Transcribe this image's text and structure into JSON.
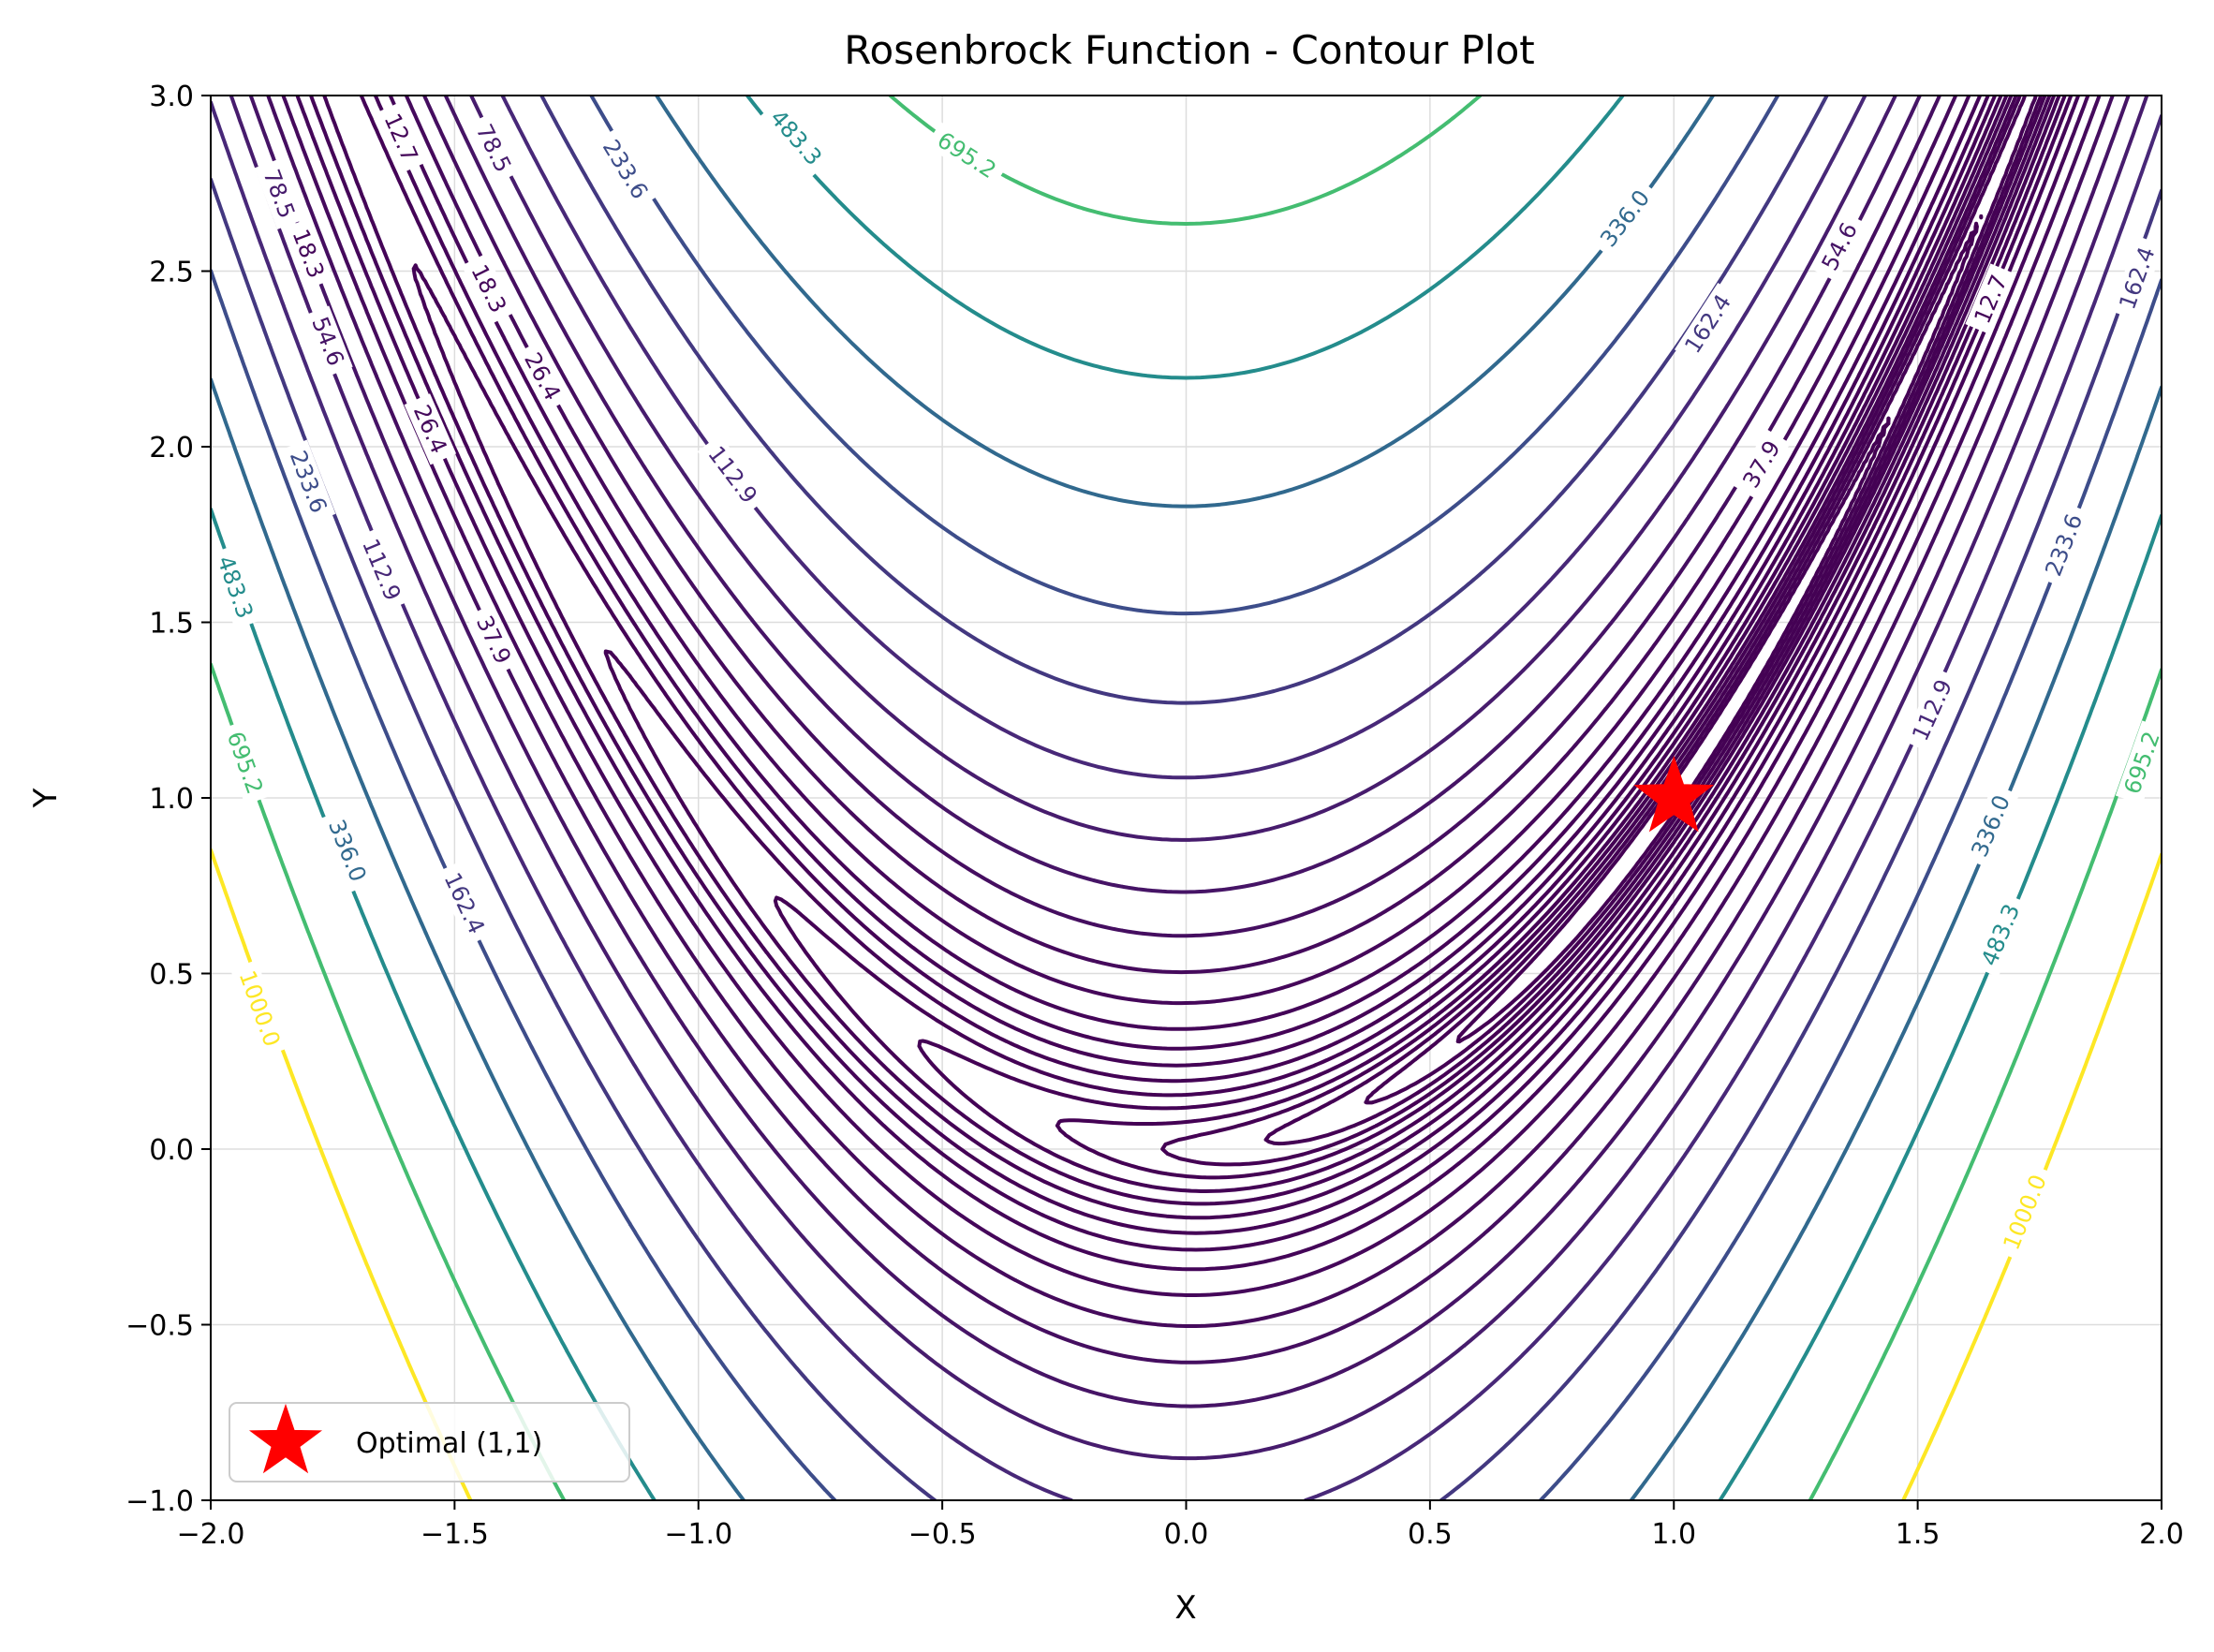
{
  "chart_data": {
    "type": "contour",
    "title": "Rosenbrock Function - Contour Plot",
    "xlabel": "X",
    "ylabel": "Y",
    "xlim": [
      -2.0,
      2.0
    ],
    "ylim": [
      -1.0,
      3.0
    ],
    "x_ticks": [
      "−2.0",
      "−1.5",
      "−1.0",
      "−0.5",
      "0.0",
      "0.5",
      "1.0",
      "1.5",
      "2.0"
    ],
    "y_ticks": [
      "−1.0",
      "−0.5",
      "0.0",
      "0.5",
      "1.0",
      "1.5",
      "2.0",
      "2.5",
      "3.0"
    ],
    "grid": true,
    "function": "f(x,y) = (1 - x)^2 + 100 (y - x^2)^2",
    "levels": [
      0.2,
      0.4,
      0.7,
      1.1,
      1.6,
      2.4,
      3.4,
      4.8,
      6.7,
      9.2,
      12.7,
      18.3,
      26.4,
      37.9,
      54.6,
      78.5,
      112.9,
      162.4,
      233.6,
      336.0,
      483.3,
      695.2,
      1000.0
    ],
    "level_labels": [
      {
        "value": "1000.0",
        "x": -1.9,
        "y": 0.4
      },
      {
        "value": "695.2",
        "x": -1.93,
        "y": 1.1
      },
      {
        "value": "483.3",
        "x": -1.95,
        "y": 1.6
      },
      {
        "value": "336.0",
        "x": -1.72,
        "y": 0.85
      },
      {
        "value": "233.6",
        "x": -1.8,
        "y": 1.9
      },
      {
        "value": "162.4",
        "x": -1.48,
        "y": 0.7
      },
      {
        "value": "112.9",
        "x": -1.65,
        "y": 1.65
      },
      {
        "value": "78.5",
        "x": -1.86,
        "y": 2.72
      },
      {
        "value": "54.6",
        "x": -1.76,
        "y": 2.3
      },
      {
        "value": "37.9",
        "x": -1.42,
        "y": 1.45
      },
      {
        "value": "26.4",
        "x": -1.55,
        "y": 2.05
      },
      {
        "value": "18.3",
        "x": -1.8,
        "y": 2.55
      },
      {
        "value": "12.7",
        "x": -1.61,
        "y": 2.88
      },
      {
        "value": "78.5",
        "x": -1.42,
        "y": 2.85
      },
      {
        "value": "18.3",
        "x": -1.43,
        "y": 2.45
      },
      {
        "value": "26.4",
        "x": -1.32,
        "y": 2.2
      },
      {
        "value": "233.6",
        "x": -1.15,
        "y": 2.79
      },
      {
        "value": "483.3",
        "x": -0.8,
        "y": 2.88
      },
      {
        "value": "695.2",
        "x": -0.45,
        "y": 2.83
      },
      {
        "value": "112.9",
        "x": -0.93,
        "y": 1.92
      },
      {
        "value": "336.0",
        "x": 0.9,
        "y": 2.65
      },
      {
        "value": "162.4",
        "x": 1.07,
        "y": 2.35
      },
      {
        "value": "54.6",
        "x": 1.34,
        "y": 2.57
      },
      {
        "value": "37.9",
        "x": 1.18,
        "y": 1.95
      },
      {
        "value": "233.6",
        "x": 1.8,
        "y": 1.72
      },
      {
        "value": "162.4",
        "x": 1.95,
        "y": 2.48
      },
      {
        "value": "112.9",
        "x": 1.53,
        "y": 1.25
      },
      {
        "value": "336.0",
        "x": 1.65,
        "y": 0.92
      },
      {
        "value": "483.3",
        "x": 1.67,
        "y": 0.61
      },
      {
        "value": "695.2",
        "x": 1.96,
        "y": 1.1
      },
      {
        "value": "1000.0",
        "x": 1.72,
        "y": -0.18
      },
      {
        "value": "12.7",
        "x": 1.65,
        "y": 2.42
      }
    ],
    "marker": {
      "label": "Optimal (1,1)",
      "x": 1,
      "y": 1,
      "color": "#ff0000",
      "symbol": "star"
    },
    "legend_position": "lower-left",
    "colormap": "viridis"
  }
}
